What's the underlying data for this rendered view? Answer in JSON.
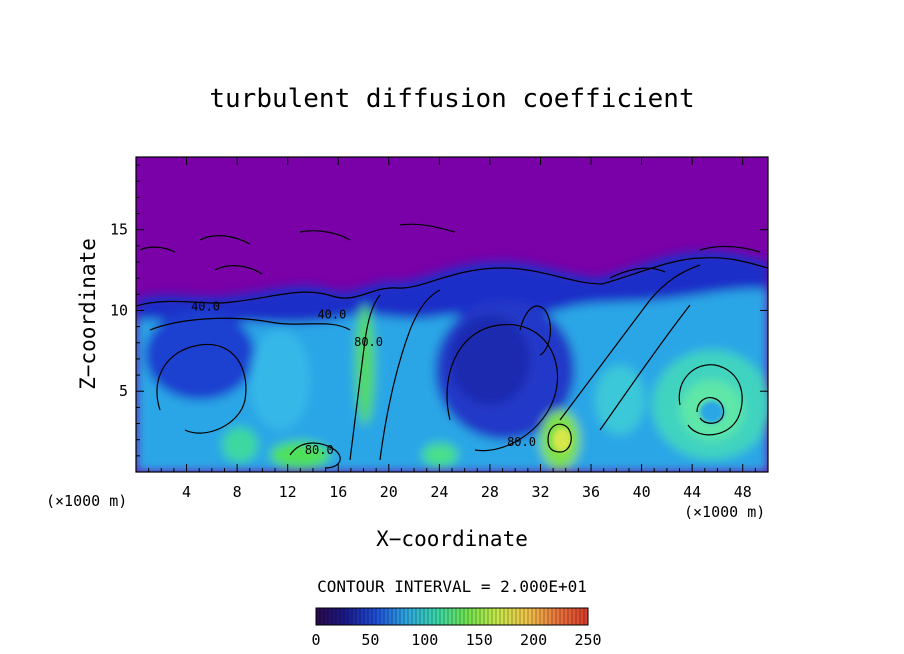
{
  "chart_data": {
    "type": "heatmap",
    "title": "turbulent diffusion coefficient",
    "xlabel": "X−coordinate",
    "ylabel": "Z−coordinate",
    "x_unit_left": "(×1000 m)",
    "x_unit_right": "(×1000 m)",
    "xlim": [
      0,
      50
    ],
    "ylim": [
      0,
      19.5
    ],
    "x_ticks": [
      4,
      8,
      12,
      16,
      20,
      24,
      28,
      32,
      36,
      40,
      44,
      48
    ],
    "y_ticks": [
      5,
      10,
      15
    ],
    "contour_interval_text": "CONTOUR INTERVAL = 2.000E+01",
    "contour_labels": [
      {
        "text": "40.0",
        "x": 5.5,
        "z": 10.0
      },
      {
        "text": "40.0",
        "x": 15.5,
        "z": 9.5
      },
      {
        "text": "80.0",
        "x": 18.4,
        "z": 7.8
      },
      {
        "text": "80.0",
        "x": 14.5,
        "z": 1.1
      },
      {
        "text": "80.0",
        "x": 30.5,
        "z": 1.6
      }
    ],
    "colorbar": {
      "min": 0,
      "max": 250,
      "ticks": [
        0,
        50,
        100,
        150,
        200,
        250
      ],
      "colors": [
        "#2a0a4a",
        "#1a1a8c",
        "#1f4fd6",
        "#2ea6e0",
        "#3ad6a8",
        "#6fe34f",
        "#c6e84a",
        "#f0c34a",
        "#e8743a",
        "#d83a2a"
      ]
    },
    "colors": {
      "background_field": "#7a00a8",
      "low_band": "#1f2fc8",
      "mid": "#2aa6e6",
      "high": "#5fe06a"
    }
  }
}
